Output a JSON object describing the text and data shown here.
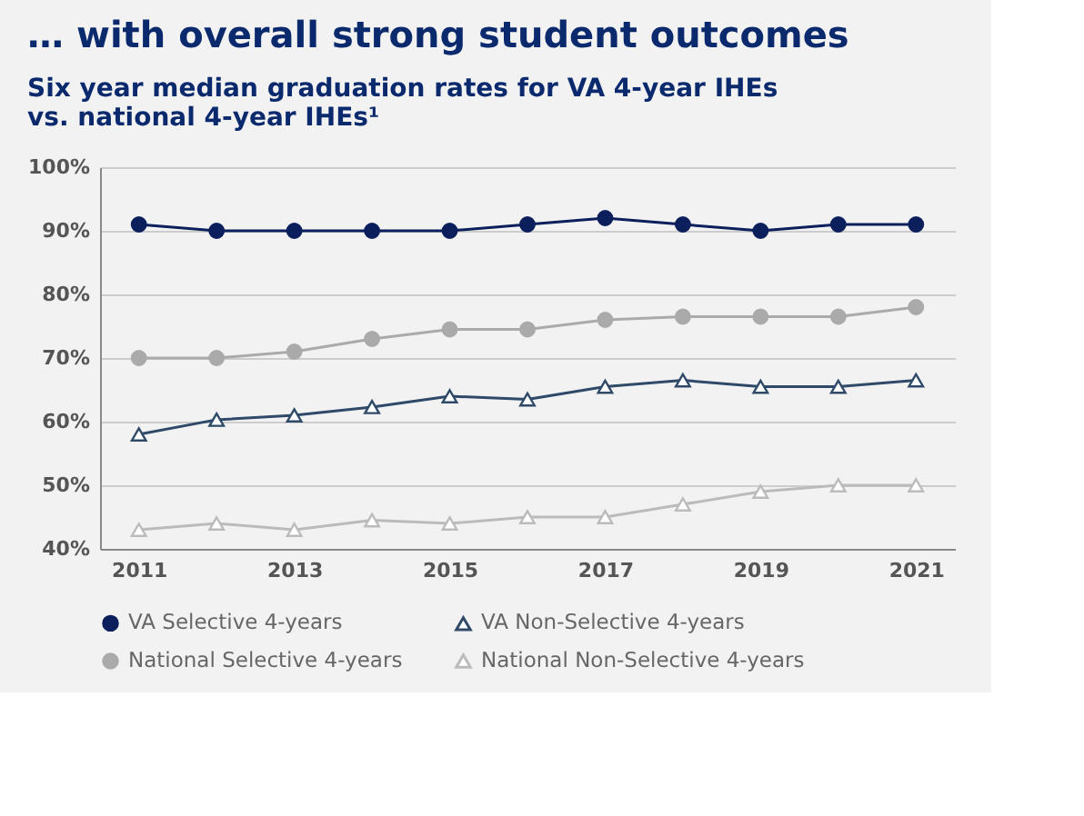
{
  "chart_data": {
    "type": "line",
    "title": "… with overall strong student outcomes",
    "subtitle": [
      "Six year median graduation rates for VA 4-year IHEs",
      "vs. national 4-year IHEs¹"
    ],
    "x": [
      2011,
      2012,
      2013,
      2014,
      2015,
      2016,
      2017,
      2018,
      2019,
      2020,
      2021
    ],
    "xlim": [
      2010.5,
      2021.5
    ],
    "xticks": [
      2011,
      2013,
      2015,
      2017,
      2019,
      2021
    ],
    "ylim": [
      40,
      100
    ],
    "yticks": [
      {
        "value": 40,
        "label": "40%"
      },
      {
        "value": 50,
        "label": "50%"
      },
      {
        "value": 60,
        "label": "60%"
      },
      {
        "value": 70,
        "label": "70%"
      },
      {
        "value": 80,
        "label": "80%"
      },
      {
        "value": 90,
        "label": "90%"
      },
      {
        "value": 100,
        "label": "100%"
      }
    ],
    "grid": "y",
    "legend": "bottom",
    "line_style": "solid",
    "series": [
      {
        "name": "VA Selective 4-years",
        "color": "#0b1f5c",
        "marker": "circle",
        "values": [
          91,
          90,
          90,
          90,
          90,
          91,
          92,
          91,
          90,
          91,
          91
        ]
      },
      {
        "name": "VA Non-Selective 4-years",
        "color": "#2e4a68",
        "marker": "triangle",
        "values": [
          58,
          60.3,
          61,
          62.3,
          64,
          63.5,
          65.5,
          66.5,
          65.5,
          65.5,
          66.5
        ]
      },
      {
        "name": "National Selective 4-years",
        "color": "#aaaaaa",
        "marker": "circle",
        "values": [
          70,
          70,
          71,
          73,
          74.5,
          74.5,
          76,
          76.5,
          76.5,
          76.5,
          78
        ]
      },
      {
        "name": "National Non-Selective 4-years",
        "color": "#bbbbbb",
        "marker": "triangle",
        "values": [
          43,
          44,
          43,
          44.5,
          44,
          45,
          45,
          47,
          49,
          50,
          50
        ]
      }
    ]
  }
}
